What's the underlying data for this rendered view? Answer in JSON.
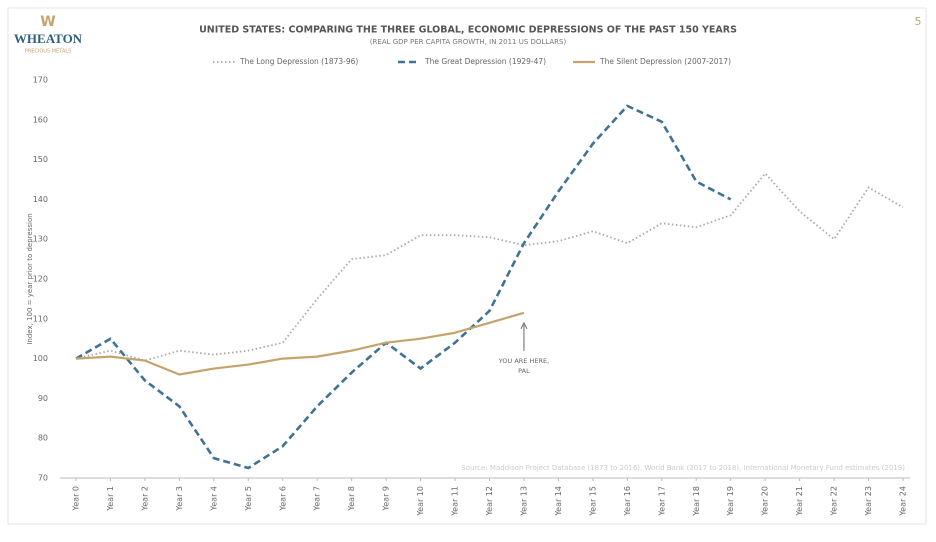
{
  "logo": {
    "name": "WHEATON",
    "tagline": "PRECIOUS METALS"
  },
  "page_number": "5",
  "chart_data": {
    "type": "line",
    "title": "UNITED STATES: COMPARING THE THREE GLOBAL, ECONOMIC DEPRESSIONS OF THE PAST 150 YEARS",
    "subtitle": "(REAL GDP PER CAPITA GROWTH, IN 2011 US DOLLARS)",
    "y_label": "Index, 100 = year prior to depression",
    "source": "Source: Maddison Project Database (1873 to 2016), World Bank (2017 to 2018), International Monetary Fund estimates (2019)",
    "annotation": [
      "YOU ARE HERE,",
      "PAL"
    ],
    "categories": [
      "Year 0",
      "Year 1",
      "Year 2",
      "Year 3",
      "Year 4",
      "Year 5",
      "Year 6",
      "Year 7",
      "Year 8",
      "Year 9",
      "Year 10",
      "Year 11",
      "Year 12",
      "Year 13",
      "Year 14",
      "Year 15",
      "Year 16",
      "Year 17",
      "Year 18",
      "Year 19",
      "Year 20",
      "Year 21",
      "Year 22",
      "Year 23",
      "Year 24"
    ],
    "series": [
      {
        "name": "The Long Depression (1873-96)",
        "color": "#a8a8a8",
        "dash": "dotted",
        "values": [
          100,
          102,
          99.5,
          102,
          101,
          102,
          104,
          115,
          125,
          126,
          131,
          131,
          130.5,
          128.5,
          129.5,
          132,
          129,
          134,
          133,
          136,
          146.5,
          137,
          130,
          143,
          138
        ]
      },
      {
        "name": "The Great Depression (1929-47)",
        "color": "#3f7293",
        "dash": "dashed",
        "values": [
          100,
          105,
          94.5,
          88,
          75,
          72.5,
          78,
          88,
          96.5,
          104,
          97.5,
          104,
          112,
          129,
          142,
          154,
          163.5,
          159.5,
          144.5,
          140,
          null,
          null,
          null,
          null,
          null
        ]
      },
      {
        "name": "The Silent Depression (2007-2017)",
        "color": "#c4a46c",
        "dash": "solid",
        "values": [
          100,
          100.5,
          99.5,
          96,
          97.5,
          98.5,
          100,
          100.5,
          102,
          104,
          105,
          106.5,
          109,
          111.5,
          null,
          null,
          null,
          null,
          null,
          null,
          null,
          null,
          null,
          null,
          null
        ]
      }
    ],
    "ylim": [
      70,
      170
    ],
    "yticks": [
      70,
      80,
      90,
      100,
      110,
      120,
      130,
      140,
      150,
      160,
      170
    ],
    "grid": false,
    "legend": "top"
  }
}
